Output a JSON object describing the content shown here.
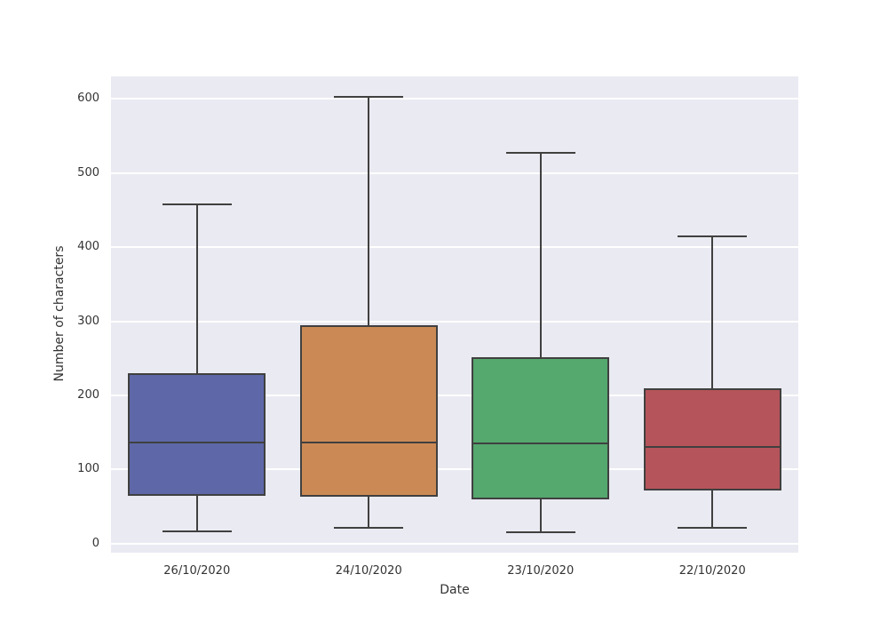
{
  "chart_data": {
    "type": "box",
    "title": "",
    "xlabel": "Date",
    "ylabel": "Number of characters",
    "categories": [
      "26/10/2020",
      "24/10/2020",
      "23/10/2020",
      "22/10/2020"
    ],
    "boxes": [
      {
        "category": "26/10/2020",
        "whisker_low": 17,
        "q1": 65,
        "median": 137,
        "q3": 230,
        "whisker_high": 457,
        "color": "#5e68a8"
      },
      {
        "category": "24/10/2020",
        "whisker_low": 21,
        "q1": 64,
        "median": 137,
        "q3": 295,
        "whisker_high": 603,
        "color": "#cb8a55"
      },
      {
        "category": "23/10/2020",
        "whisker_low": 16,
        "q1": 60,
        "median": 135,
        "q3": 252,
        "whisker_high": 527,
        "color": "#55a86e"
      },
      {
        "category": "22/10/2020",
        "whisker_low": 21,
        "q1": 72,
        "median": 131,
        "q3": 210,
        "whisker_high": 415,
        "color": "#b5545a"
      }
    ],
    "yticks": [
      0,
      100,
      200,
      300,
      400,
      500,
      600
    ],
    "ylim": [
      -12,
      630
    ],
    "grid": true,
    "legend": false,
    "plot_bg_color": "#eaeaf2",
    "grid_color": "#ffffff",
    "line_color": "#404040",
    "text_color": "#333333"
  }
}
